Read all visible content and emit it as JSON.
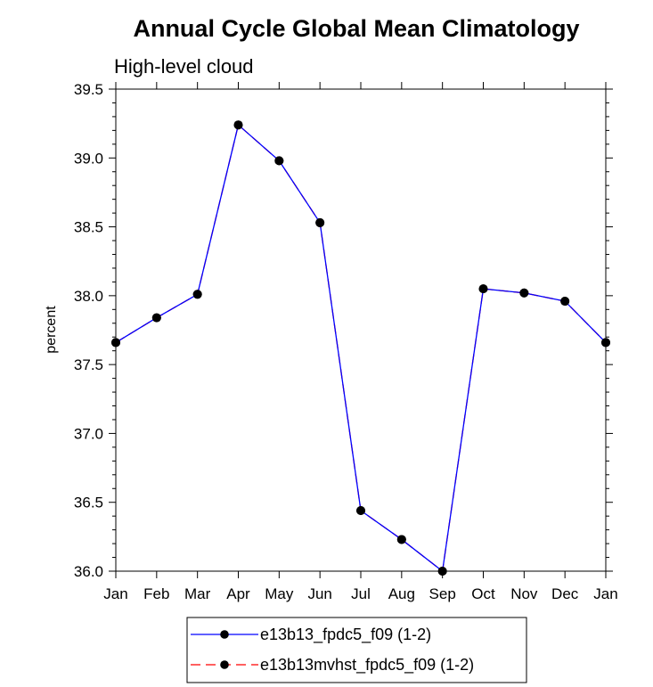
{
  "chart_data": {
    "type": "line",
    "title": "Annual Cycle Global Mean Climatology",
    "subtitle": "High-level cloud",
    "xlabel": "",
    "ylabel": "percent",
    "categories": [
      "Jan",
      "Feb",
      "Mar",
      "Apr",
      "May",
      "Jun",
      "Jul",
      "Aug",
      "Sep",
      "Oct",
      "Nov",
      "Dec",
      "Jan"
    ],
    "ylim": [
      36.0,
      39.5
    ],
    "yticks": [
      "36.0",
      "36.5",
      "37.0",
      "37.5",
      "38.0",
      "38.5",
      "39.0",
      "39.5"
    ],
    "series": [
      {
        "name": "e13b13_fpdc5_f09 (1-2)",
        "color": "#0000ff",
        "line_style": "solid",
        "marker": "filled-circle",
        "values": [
          37.66,
          37.84,
          38.01,
          39.24,
          38.98,
          38.53,
          36.44,
          36.23,
          36.0,
          38.05,
          38.02,
          37.96,
          37.66
        ]
      },
      {
        "name": "e13b13mvhst_fpdc5_f09 (1-2)",
        "color": "#ff0000",
        "line_style": "dashed",
        "marker": "filled-circle",
        "values": [
          37.66,
          37.84,
          38.01,
          39.24,
          38.98,
          38.53,
          36.44,
          36.23,
          36.0,
          38.05,
          38.02,
          37.96,
          37.66
        ]
      }
    ],
    "legend": {
      "position": "bottom"
    }
  }
}
